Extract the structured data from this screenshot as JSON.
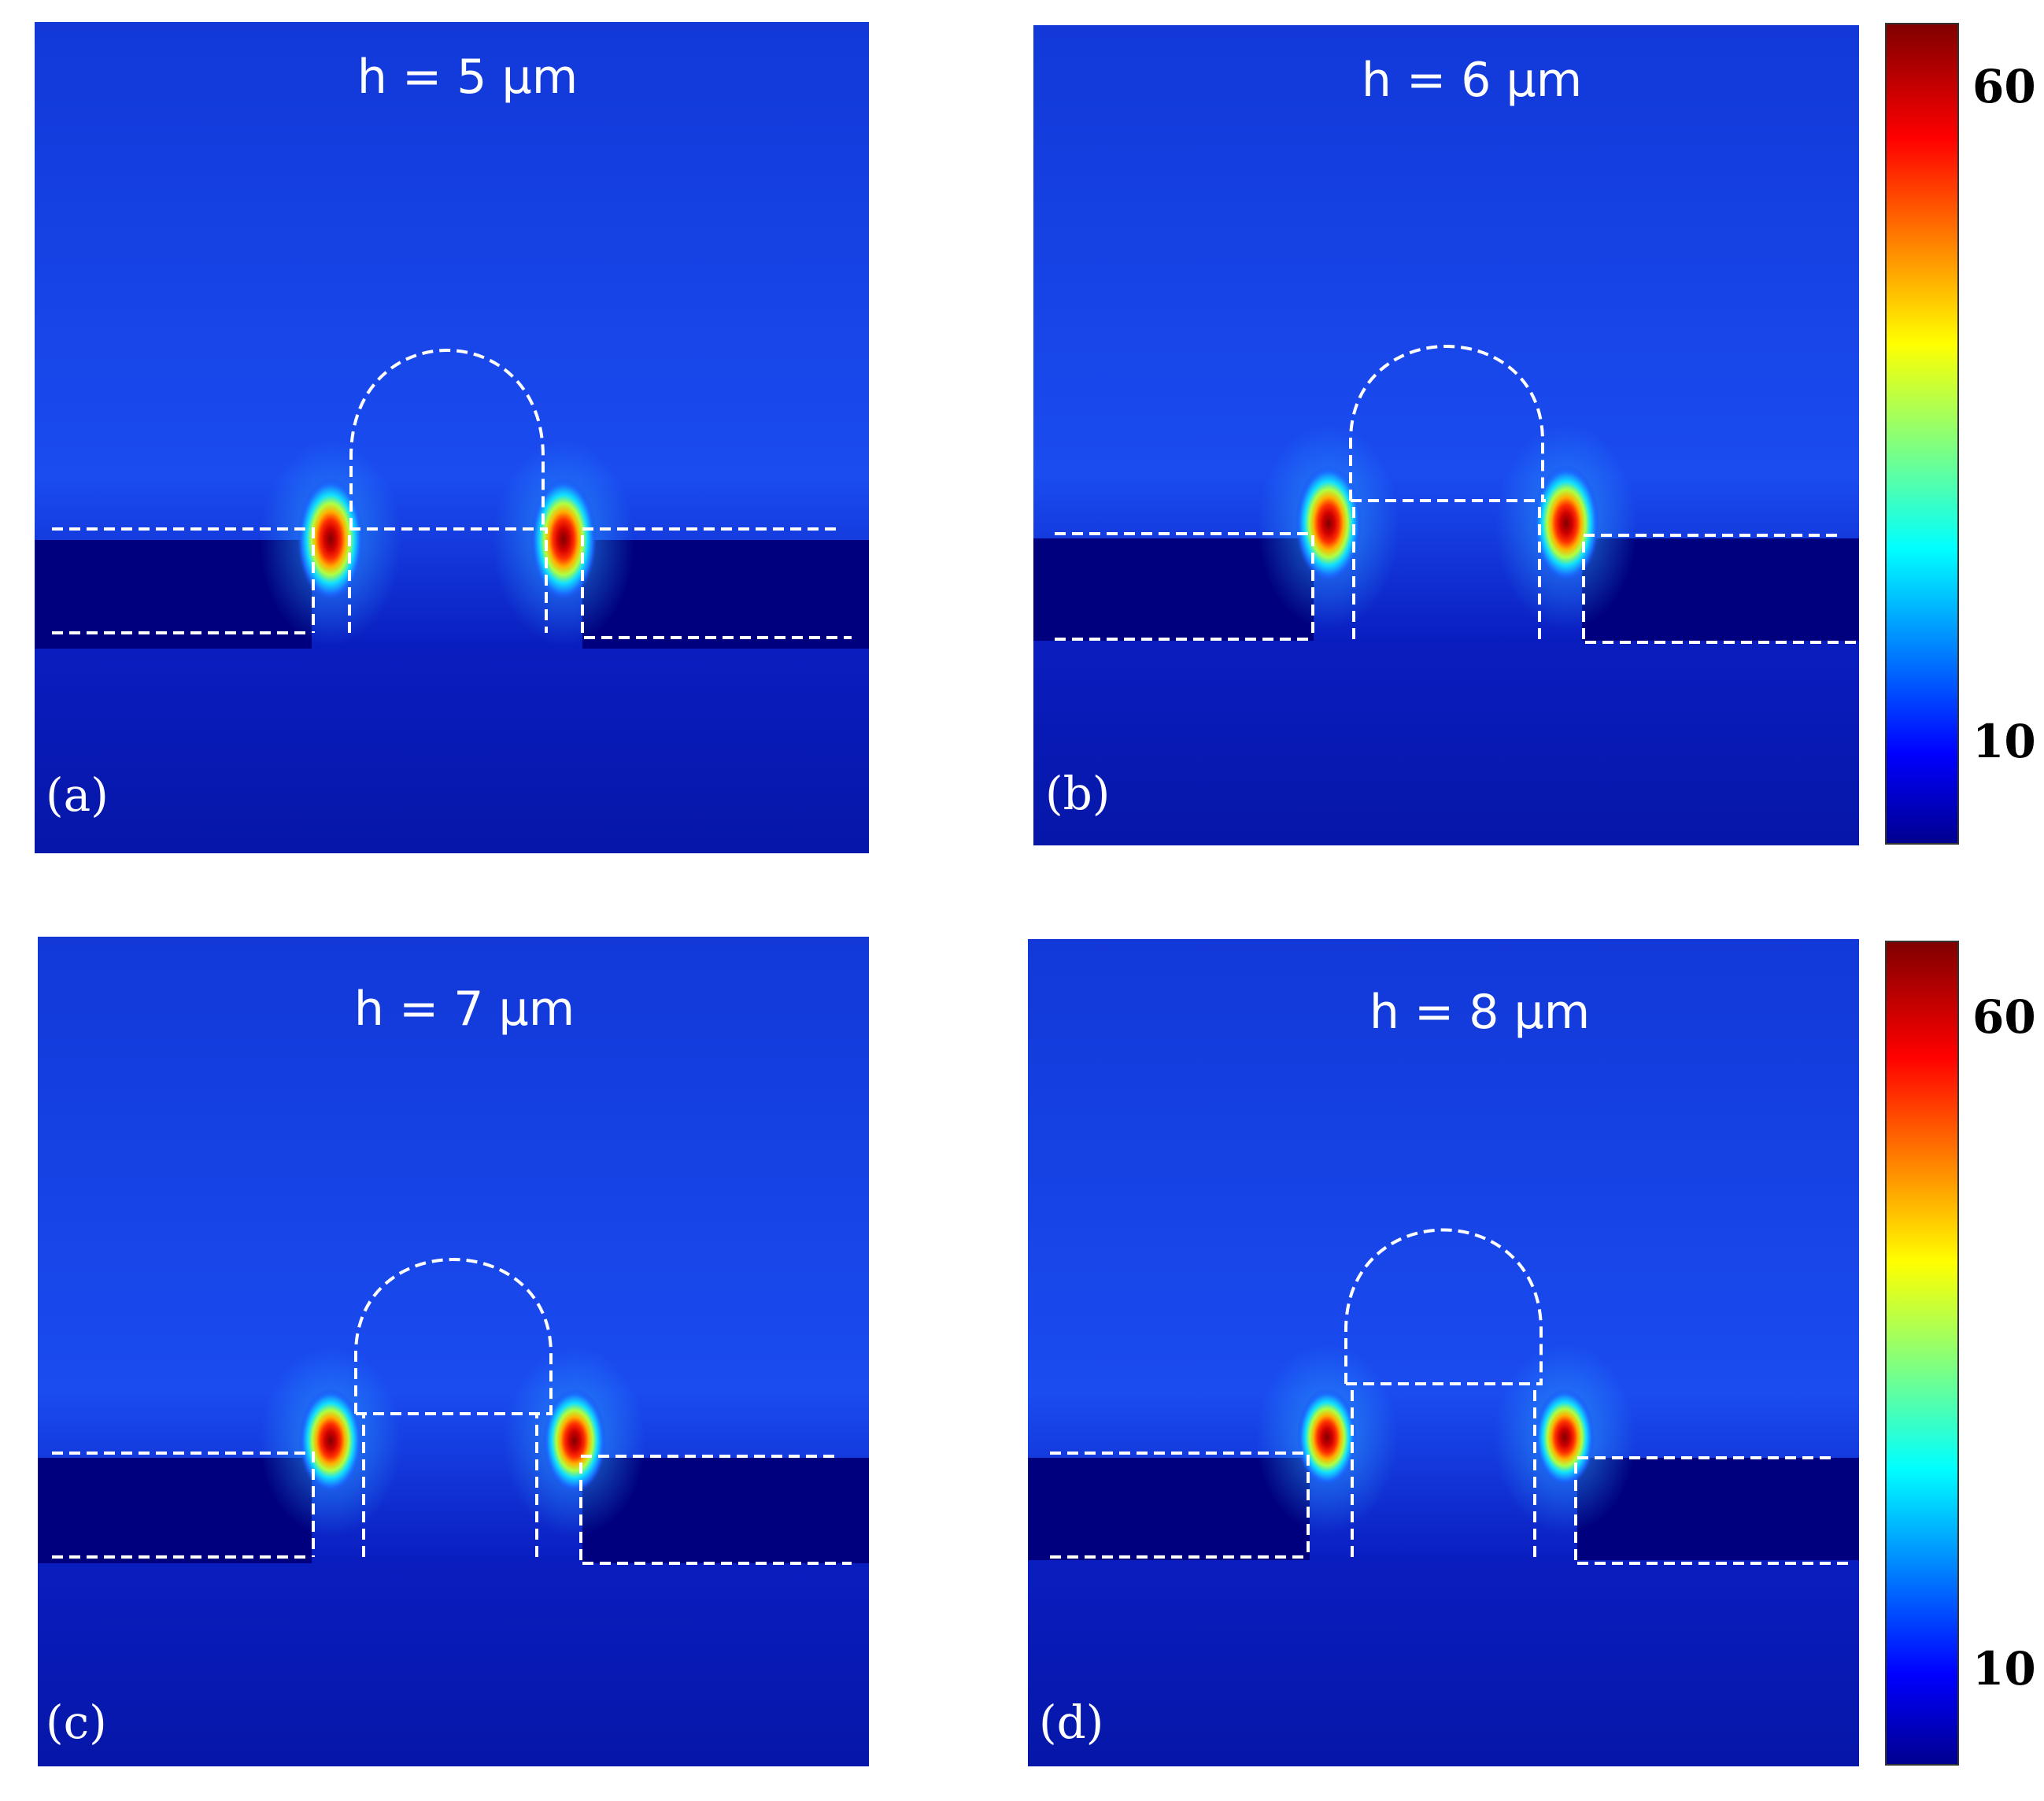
{
  "chart_data": {
    "type": "heatmap",
    "panels": [
      {
        "letter": "(a)",
        "title": "h = 5 µm",
        "h_um": 5
      },
      {
        "letter": "(b)",
        "title": "h = 6 µm",
        "h_um": 6
      },
      {
        "letter": "(c)",
        "title": "h = 7 µm",
        "h_um": 7
      },
      {
        "letter": "(d)",
        "title": "h = 8 µm",
        "h_um": 8
      }
    ],
    "colorbars": [
      {
        "ticks": [
          "60",
          "10"
        ],
        "colormap": "jet"
      },
      {
        "ticks": [
          "60",
          "10"
        ],
        "colormap": "jet"
      }
    ]
  }
}
